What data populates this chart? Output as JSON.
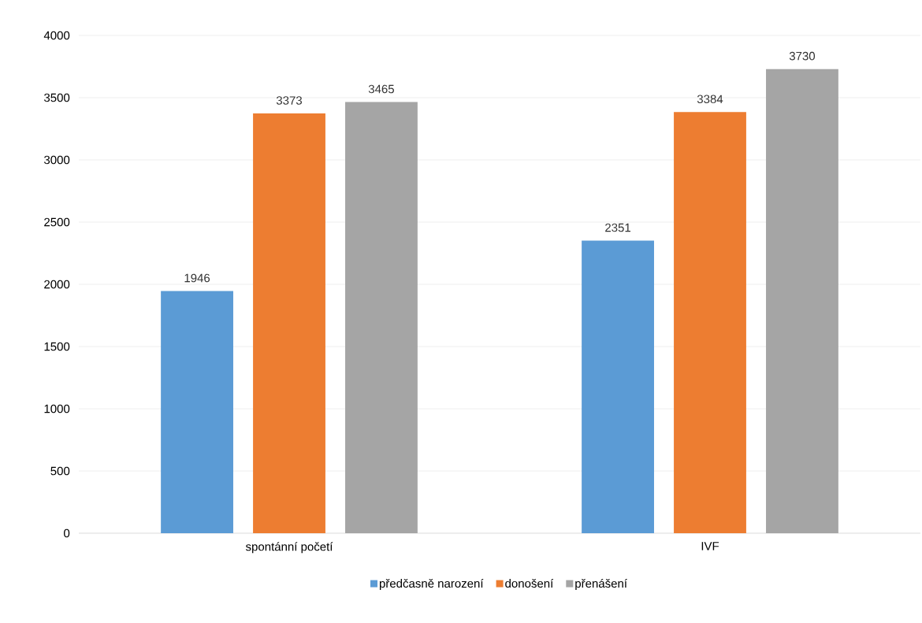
{
  "chart_data": {
    "type": "bar",
    "categories": [
      "spontánní početí",
      "IVF"
    ],
    "series": [
      {
        "name": "předčasně narození",
        "color": "#5b9bd5",
        "values": [
          1946,
          2351
        ]
      },
      {
        "name": "donošení",
        "color": "#ed7d31",
        "values": [
          3373,
          3384
        ]
      },
      {
        "name": "přenášení",
        "color": "#a5a5a5",
        "values": [
          3465,
          3730
        ]
      }
    ],
    "ylim": [
      0,
      4000
    ],
    "yticks": [
      0,
      500,
      1000,
      1500,
      2000,
      2500,
      3000,
      3500,
      4000
    ],
    "grid": "y",
    "legend": "bottom",
    "data_labels": true
  }
}
